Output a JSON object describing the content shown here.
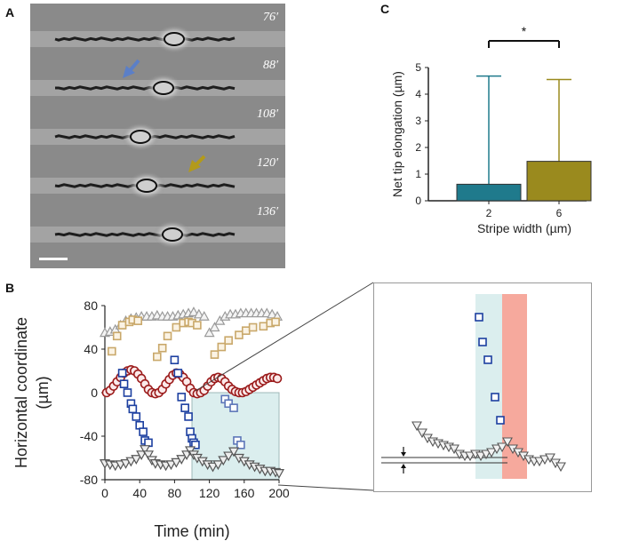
{
  "labels": {
    "a": "A",
    "b": "B",
    "c": "C"
  },
  "panel_a": {
    "times": [
      "76′",
      "88′",
      "108′",
      "120′",
      "136′"
    ]
  },
  "colors": {
    "blue_arrow": "#5b7fc7",
    "yellow_arrow": "#b39a1a",
    "bar1": "#1f7a8c",
    "bar2": "#9a8a1e",
    "grey_tri": "#9a9a9a",
    "dark_tri": "#555555",
    "tan_sq": "#c9a86a",
    "red_circ": "#9b1b1b",
    "blue_sq": "#1c3fa0",
    "shade_blue": "#dbeeee",
    "shade_red": "#f6a99d"
  },
  "chart_data": [
    {
      "id": "C",
      "type": "bar",
      "categories": [
        "2",
        "6"
      ],
      "values": [
        0.62,
        1.48
      ],
      "errors_upper": [
        4.68,
        4.55
      ],
      "ylim": [
        0,
        5
      ],
      "yticks": [
        "0",
        "1",
        "2",
        "3",
        "4",
        "5"
      ],
      "ylabel": "Net tip elongation (µm)",
      "xlabel": "Stripe width (µm)",
      "significance": "*"
    },
    {
      "id": "B",
      "type": "scatter",
      "xlim": [
        0,
        200
      ],
      "ylim": [
        -80,
        80
      ],
      "xticks": [
        "0",
        "40",
        "80",
        "120",
        "160",
        "200"
      ],
      "yticks": [
        "80",
        "40",
        "0",
        "-40",
        "-80"
      ],
      "xlabel": "Time (min)",
      "ylabel_line1": "Horizontal coordinate",
      "ylabel_line2": "(µm)",
      "series": [
        {
          "name": "upper-triangles",
          "marker": "triangle-up",
          "x": [
            0,
            6,
            12,
            18,
            24,
            30,
            36,
            42,
            48,
            54,
            60,
            66,
            72,
            78,
            84,
            90,
            96,
            102,
            108,
            114,
            120,
            126,
            132,
            138,
            144,
            150,
            156,
            162,
            168,
            174,
            180,
            186,
            192,
            198
          ],
          "y": [
            55,
            56,
            58,
            62,
            66,
            68,
            69,
            70,
            70,
            70,
            71,
            70,
            70,
            70,
            71,
            72,
            73,
            74,
            72,
            70,
            55,
            60,
            66,
            70,
            72,
            72,
            73,
            73,
            73,
            73,
            73,
            73,
            72,
            70
          ]
        },
        {
          "name": "tan-squares",
          "marker": "square",
          "x": [
            8,
            14,
            20,
            28,
            32,
            38,
            60,
            66,
            72,
            82,
            90,
            96,
            100,
            106,
            126,
            134,
            142,
            154,
            162,
            170,
            182,
            190,
            196
          ],
          "y": [
            38,
            52,
            62,
            65,
            67,
            66,
            33,
            41,
            52,
            60,
            64,
            65,
            64,
            62,
            35,
            42,
            48,
            53,
            57,
            60,
            61,
            64,
            65
          ],
          "trim": true
        },
        {
          "name": "red-circles",
          "marker": "circle",
          "x": [
            2,
            6,
            10,
            14,
            18,
            22,
            26,
            30,
            34,
            38,
            42,
            46,
            50,
            54,
            58,
            62,
            66,
            70,
            74,
            78,
            82,
            86,
            90,
            94,
            98,
            102,
            106,
            110,
            114,
            118,
            122,
            126,
            130,
            134,
            138,
            142,
            146,
            150,
            154,
            158,
            162,
            166,
            170,
            174,
            178,
            182,
            186,
            190,
            194,
            198
          ],
          "y": [
            0,
            2,
            6,
            10,
            14,
            18,
            20,
            21,
            20,
            17,
            13,
            8,
            3,
            0,
            -1,
            0,
            3,
            8,
            12,
            16,
            18,
            17,
            14,
            10,
            4,
            0,
            -1,
            0,
            2,
            6,
            10,
            13,
            14,
            13,
            10,
            6,
            3,
            1,
            0,
            0,
            1,
            3,
            5,
            7,
            9,
            11,
            13,
            14,
            14,
            13
          ]
        },
        {
          "name": "blue-squares",
          "marker": "square",
          "x": [
            20,
            22,
            26,
            30,
            32,
            36,
            40,
            44,
            46,
            50,
            80,
            84,
            88,
            92,
            96,
            98,
            100,
            102,
            104
          ],
          "y": [
            18,
            8,
            0,
            -10,
            -15,
            -22,
            -30,
            -36,
            -44,
            -46,
            30,
            18,
            -4,
            -14,
            -22,
            -36,
            -42,
            -46,
            -48
          ]
        },
        {
          "name": "light-blue-squares",
          "marker": "square",
          "x": [
            138,
            142,
            148,
            152,
            156
          ],
          "y": [
            -6,
            -10,
            -14,
            -44,
            -48
          ]
        },
        {
          "name": "dark-triangles",
          "marker": "triangle-down",
          "x": [
            0,
            6,
            12,
            18,
            24,
            30,
            36,
            42,
            46,
            50,
            54,
            58,
            64,
            70,
            76,
            82,
            88,
            94,
            98,
            102,
            106,
            112,
            118,
            124,
            130,
            136,
            142,
            148,
            154,
            160,
            166,
            172,
            178,
            184,
            190,
            196,
            200
          ],
          "y": [
            -65,
            -66,
            -67,
            -66,
            -65,
            -63,
            -61,
            -57,
            -52,
            -57,
            -62,
            -65,
            -66,
            -67,
            -66,
            -64,
            -61,
            -57,
            -53,
            -57,
            -60,
            -63,
            -66,
            -68,
            -66,
            -62,
            -58,
            -54,
            -60,
            -63,
            -66,
            -68,
            -70,
            -72,
            -72,
            -73,
            -74
          ]
        }
      ],
      "shade_region": {
        "x_from": 100,
        "x_to": 200,
        "y_from": -80,
        "y_to": 0
      }
    },
    {
      "id": "B-zoom",
      "type": "scatter",
      "series": [
        {
          "name": "blue-squares-zoom",
          "marker": "square",
          "y_order": [
            "high",
            "mid",
            "low"
          ]
        },
        {
          "name": "triangles-zoom",
          "marker": "triangle-down"
        }
      ]
    }
  ]
}
